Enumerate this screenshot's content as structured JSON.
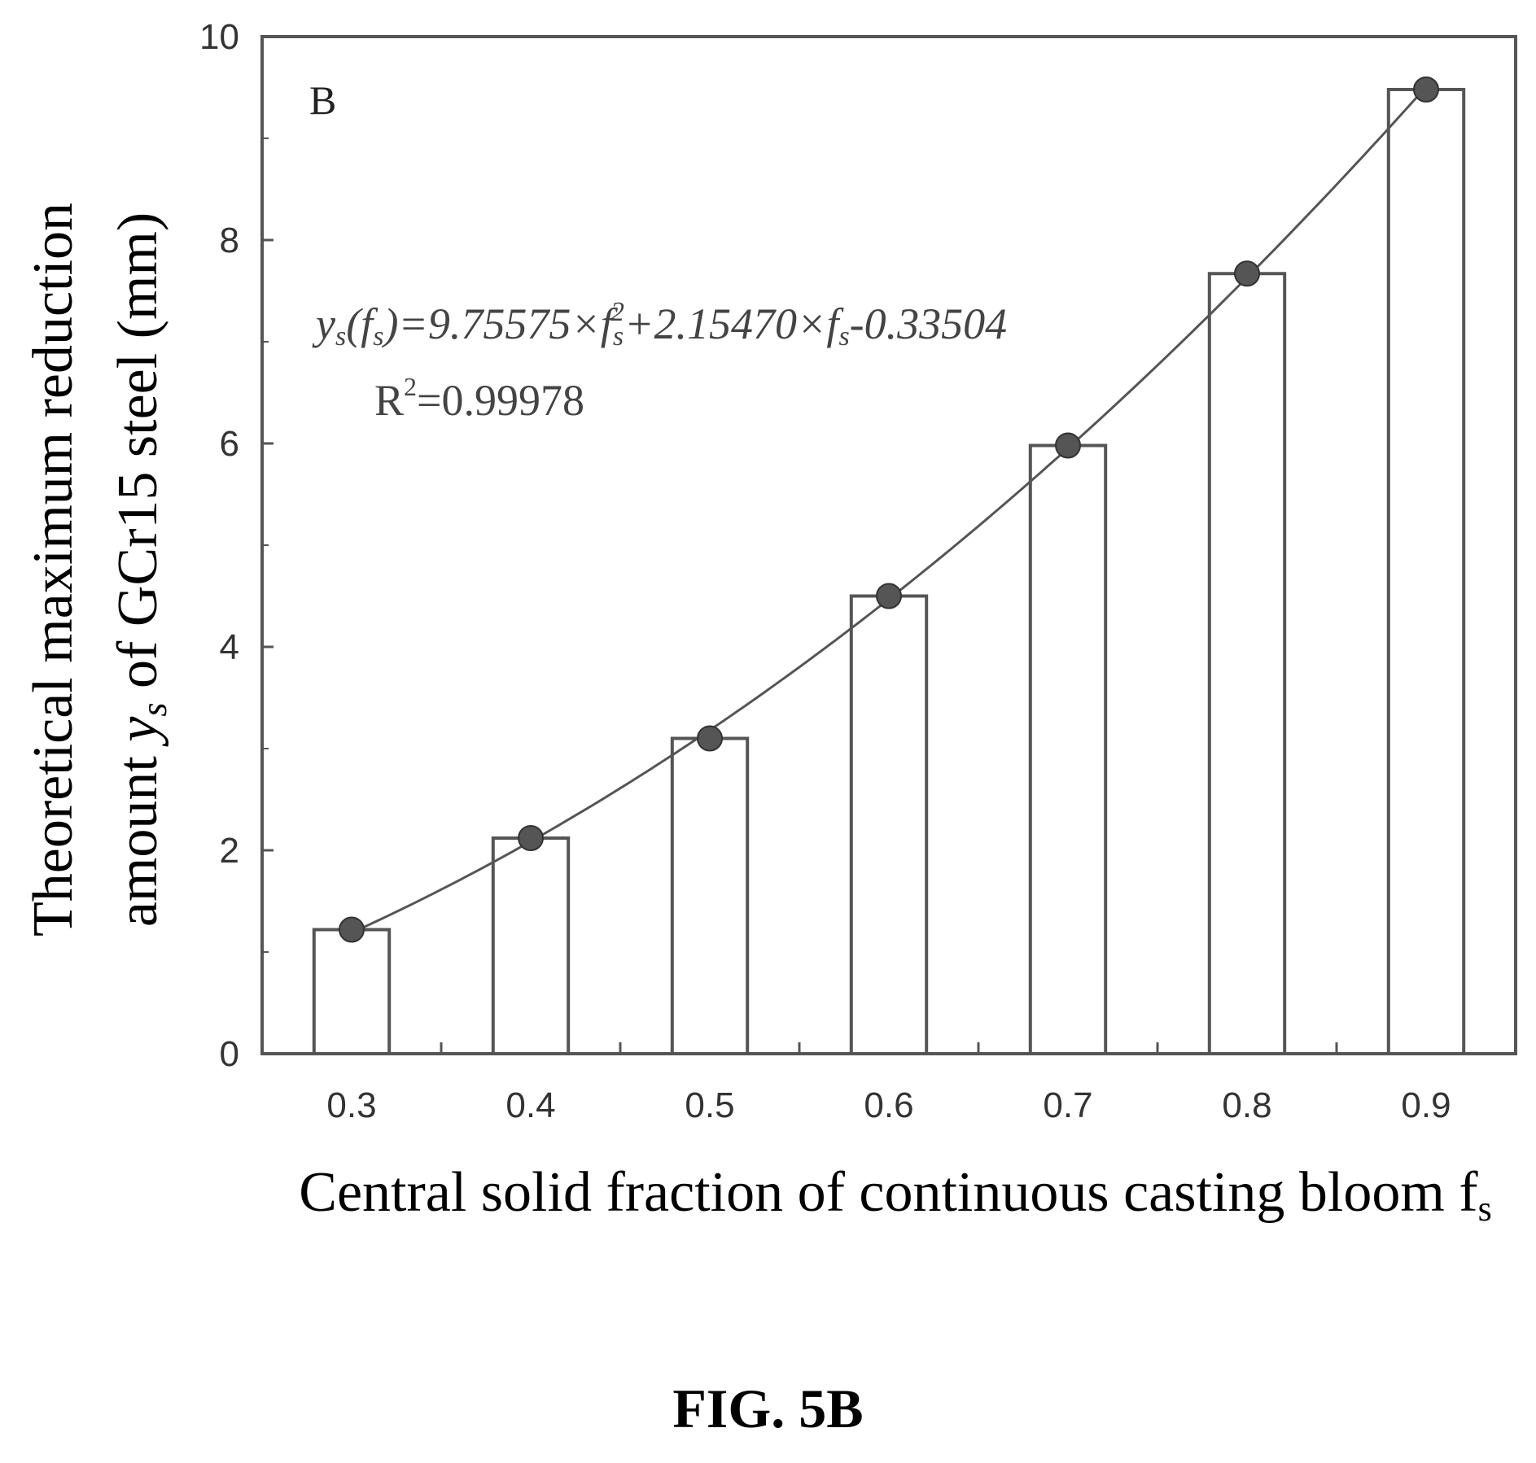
{
  "figure_caption": "FIG. 5B",
  "chart_data": {
    "type": "bar",
    "panel_label": "B",
    "categories": [
      "0.3",
      "0.4",
      "0.5",
      "0.6",
      "0.7",
      "0.8",
      "0.9"
    ],
    "x": [
      0.3,
      0.4,
      0.5,
      0.6,
      0.7,
      0.8,
      0.9
    ],
    "values": [
      1.22,
      2.12,
      3.1,
      4.5,
      5.98,
      7.67,
      9.48
    ],
    "xlabel": "Central solid fraction of continuous casting bloom f",
    "xlabel_subscript": "s",
    "ylabel_line1": "Theoretical maximum reduction",
    "ylabel_line2_prefix": "amount ",
    "ylabel_line2_var": "y",
    "ylabel_line2_sub": "s",
    "ylabel_line2_suffix": " of GCr15 steel (mm)",
    "ylim": [
      0,
      10
    ],
    "yticks": [
      "0",
      "2",
      "4",
      "6",
      "8",
      "10"
    ],
    "fit": {
      "equation_lhs": "y",
      "equation_lhs_sub": "s",
      "equation_lhs_arg": "(f",
      "equation_lhs_arg_sub": "s",
      "equation_mid1": ")=9.75575×f",
      "equation_mid1_sub": "s",
      "equation_mid1_sup": "2",
      "equation_mid2": "+2.15470×f",
      "equation_mid2_sub": "s",
      "equation_tail": "-0.33504",
      "r2_label": "R",
      "r2_sup": "2",
      "r2_value": "=0.99978",
      "coefficients": [
        9.75575,
        2.1547,
        -0.33504
      ]
    },
    "grid": false,
    "bar_fill": "#ffffff",
    "bar_stroke": "#555555",
    "marker_color": "#555555",
    "line_color": "#555555"
  }
}
